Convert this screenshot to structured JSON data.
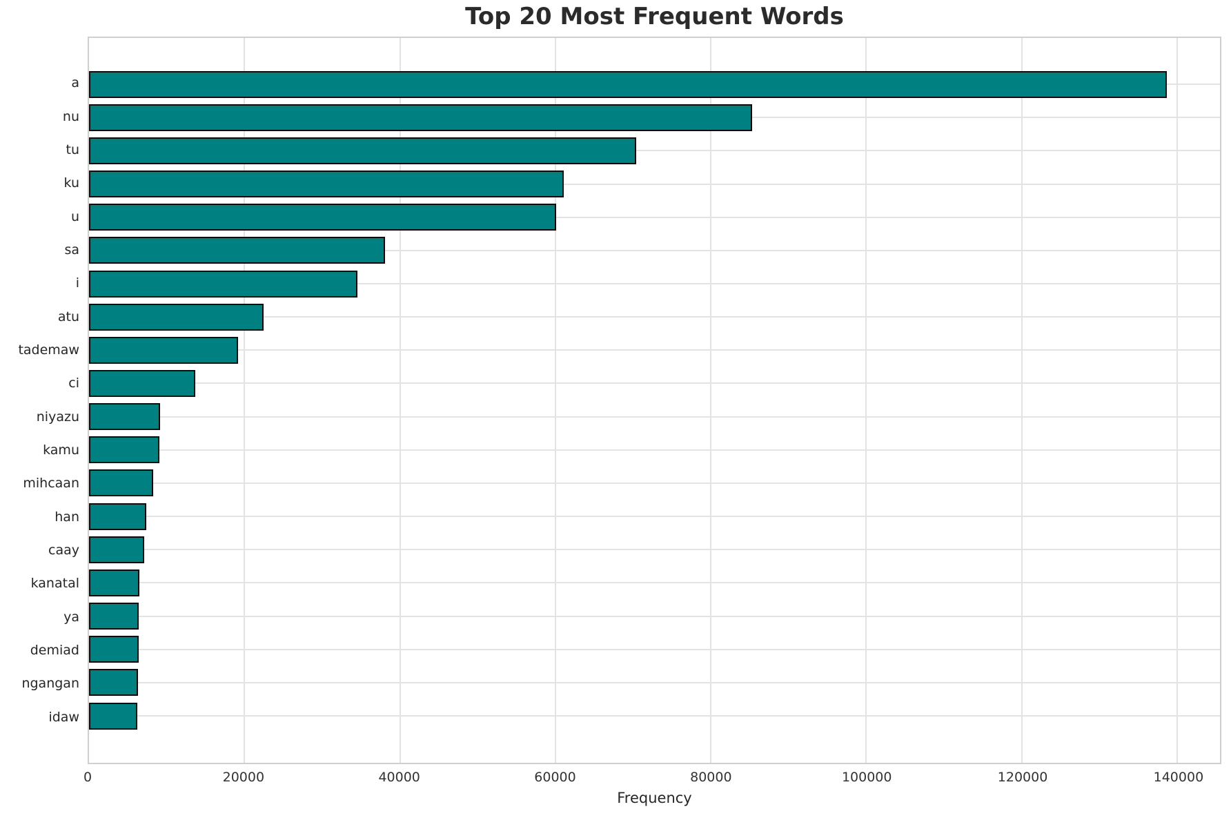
{
  "figure": {
    "title": "Top 20 Most Frequent Words"
  },
  "chart_data": {
    "type": "bar",
    "orientation": "horizontal",
    "title": "Top 20 Most Frequent Words",
    "xlabel": "Frequency",
    "ylabel": "",
    "categories": [
      "a",
      "nu",
      "tu",
      "ku",
      "u",
      "sa",
      "i",
      "atu",
      "tademaw",
      "ci",
      "niyazu",
      "kamu",
      "mihcaan",
      "han",
      "caay",
      "kanatal",
      "ya",
      "demiad",
      "ngangan",
      "idaw"
    ],
    "values": [
      138700,
      85300,
      70400,
      61100,
      60100,
      38100,
      34500,
      22500,
      19200,
      13700,
      9150,
      9050,
      8300,
      7400,
      7100,
      6500,
      6400,
      6350,
      6300,
      6250
    ],
    "x_ticks": [
      0,
      20000,
      40000,
      60000,
      80000,
      100000,
      120000,
      140000
    ],
    "x_tick_labels": [
      "0",
      "20000",
      "40000",
      "60000",
      "80000",
      "100000",
      "120000",
      "140000"
    ],
    "xlim": [
      0,
      145500
    ],
    "grid": true,
    "legend": false,
    "bar_height_ratio": 0.8,
    "colors": {
      "bar_fill": "#008080",
      "bar_edge": "#0d0d0d",
      "gridline": "#e3e3e3",
      "spine": "#cfcfcf",
      "title_text": "#2b2b2b",
      "tick_text": "#333333",
      "label_text": "#262626",
      "background": "#ffffff"
    }
  }
}
